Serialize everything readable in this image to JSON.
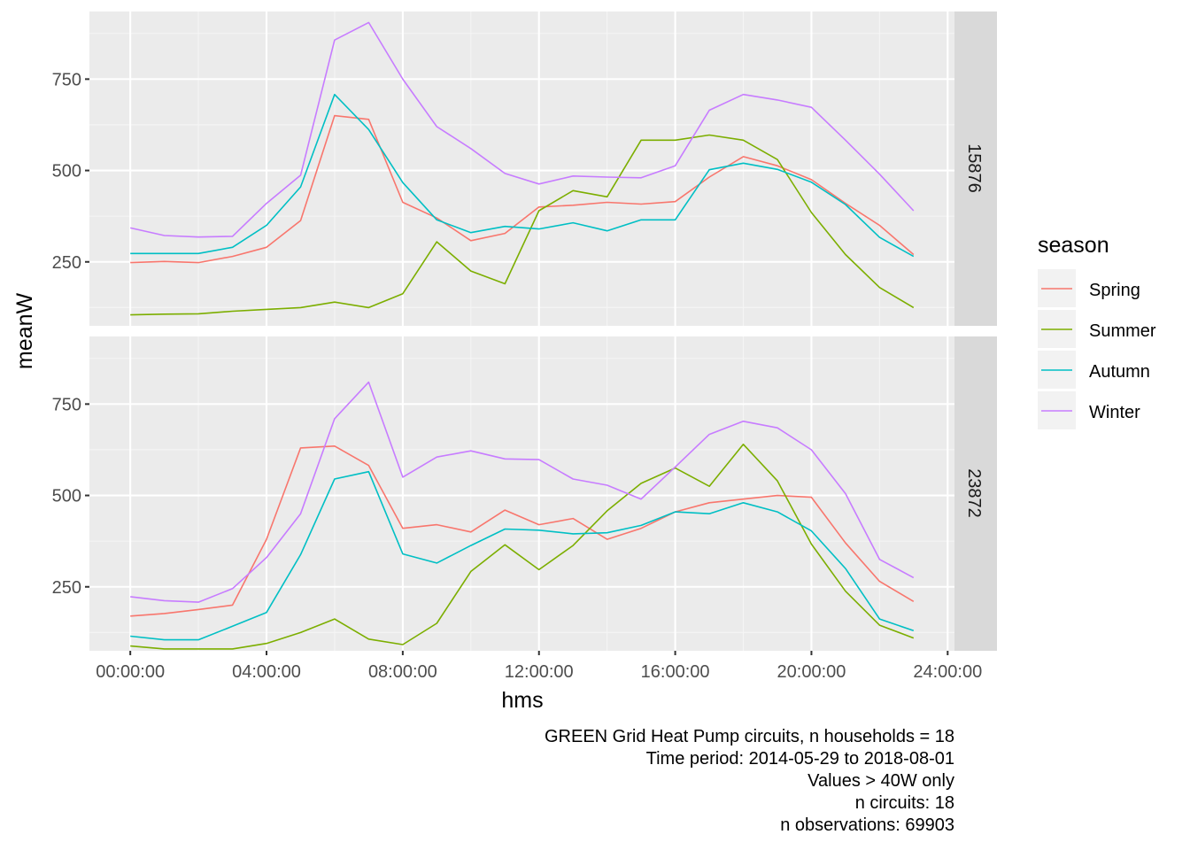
{
  "chart_data": {
    "type": "line",
    "x_label": "hms",
    "y_label": "meanW",
    "x_ticks": [
      "00:00:00",
      "04:00:00",
      "08:00:00",
      "12:00:00",
      "16:00:00",
      "20:00:00",
      "24:00:00"
    ],
    "x_tick_hours": [
      0,
      4,
      8,
      12,
      16,
      20,
      24
    ],
    "x_range_hours": [
      -1.2,
      24.2
    ],
    "y_ticks": [
      250,
      500,
      750
    ],
    "y_range": [
      75,
      935
    ],
    "grid": true,
    "legend": {
      "title": "season",
      "position": "right",
      "entries": [
        "Spring",
        "Summer",
        "Autumn",
        "Winter"
      ]
    },
    "colors": {
      "Spring": "#F8766D",
      "Summer": "#7CAE00",
      "Autumn": "#00BFC4",
      "Winter": "#C77CFF"
    },
    "x_hours": [
      0,
      1,
      2,
      3,
      4,
      5,
      6,
      7,
      8,
      9,
      10,
      11,
      12,
      13,
      14,
      15,
      16,
      17,
      18,
      19,
      20,
      21,
      22,
      23
    ],
    "panels": [
      {
        "strip": "15876",
        "series": [
          {
            "name": "Spring",
            "values": [
              248,
              251,
              248,
              265,
              290,
              363,
              650,
              640,
              413,
              370,
              308,
              328,
              400,
              405,
              413,
              408,
              415,
              482,
              538,
              513,
              475,
              410,
              350,
              270
            ]
          },
          {
            "name": "Summer",
            "values": [
              105,
              107,
              108,
              115,
              120,
              125,
              140,
              125,
              163,
              305,
              225,
              190,
              390,
              445,
              428,
              583,
              583,
              597,
              583,
              530,
              385,
              270,
              180,
              125
            ]
          },
          {
            "name": "Autumn",
            "values": [
              273,
              273,
              273,
              290,
              350,
              455,
              708,
              612,
              467,
              365,
              330,
              347,
              340,
              357,
              335,
              365,
              365,
              502,
              520,
              503,
              468,
              407,
              317,
              265
            ]
          },
          {
            "name": "Winter",
            "values": [
              343,
              322,
              318,
              320,
              410,
              487,
              857,
              905,
              750,
              620,
              560,
              492,
              463,
              485,
              482,
              480,
              513,
              665,
              708,
              693,
              673,
              583,
              490,
              390
            ]
          }
        ]
      },
      {
        "strip": "23872",
        "series": [
          {
            "name": "Spring",
            "values": [
              170,
              177,
              188,
              200,
              380,
              630,
              635,
              582,
              410,
              420,
              400,
              460,
              420,
              437,
              380,
              410,
              455,
              480,
              490,
              500,
              495,
              370,
              265,
              210
            ]
          },
          {
            "name": "Summer",
            "values": [
              88,
              80,
              80,
              80,
              95,
              125,
              162,
              107,
              92,
              150,
              292,
              365,
              297,
              363,
              458,
              533,
              575,
              525,
              640,
              540,
              367,
              238,
              145,
              110
            ]
          },
          {
            "name": "Autumn",
            "values": [
              115,
              105,
              105,
              142,
              180,
              338,
              545,
              565,
              340,
              315,
              363,
              408,
              405,
              395,
              398,
              418,
              455,
              450,
              480,
              455,
              403,
              300,
              162,
              130
            ]
          },
          {
            "name": "Winter",
            "values": [
              223,
              212,
              208,
              245,
              330,
              450,
              710,
              810,
              550,
              605,
              622,
              600,
              598,
              545,
              528,
              490,
              578,
              667,
              703,
              685,
              625,
              505,
              325,
              275
            ]
          }
        ]
      }
    ]
  },
  "caption_lines": [
    "GREEN Grid Heat Pump circuits, n households = 18",
    "Time period: 2014-05-29 to 2018-08-01",
    "Values > 40W only",
    "n circuits: 18",
    "n observations: 69903"
  ]
}
